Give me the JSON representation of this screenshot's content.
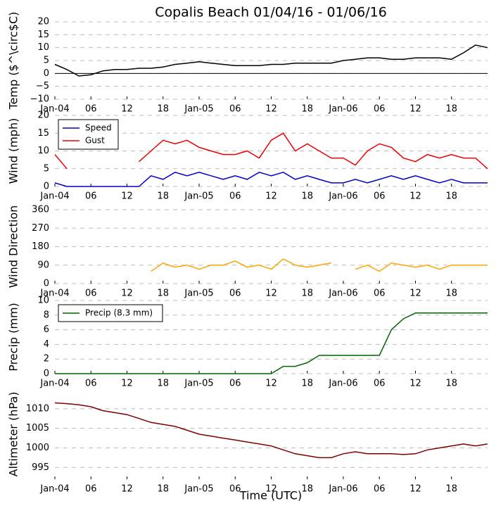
{
  "chart_data": [
    {
      "type": "line",
      "title": "Copalis Beach 01/04/16 - 01/06/16",
      "ylabel": "Temp ($^\\circ$C)",
      "x": [
        0,
        2,
        4,
        6,
        8,
        10,
        12,
        14,
        16,
        18,
        20,
        22,
        24,
        26,
        28,
        30,
        32,
        34,
        36,
        38,
        40,
        42,
        44,
        46,
        48,
        50,
        52,
        54,
        56,
        58,
        60,
        62,
        64,
        66,
        68,
        70,
        72
      ],
      "series": [
        {
          "name": "Temp",
          "color": "#000000",
          "values": [
            3.5,
            1.5,
            -1,
            -0.5,
            1,
            1.5,
            1.5,
            2,
            2,
            2.5,
            3.5,
            4,
            4.5,
            4,
            3.5,
            3,
            3,
            3,
            3.5,
            3.5,
            4,
            4,
            4,
            4,
            5,
            5.5,
            6,
            6,
            5.5,
            5.5,
            6,
            6,
            6,
            5.5,
            8,
            11,
            10
          ]
        }
      ],
      "xlim": [
        0,
        72
      ],
      "xticks": [
        {
          "value": 0,
          "label": "Jan-04"
        },
        {
          "value": 6,
          "label": "06"
        },
        {
          "value": 12,
          "label": "12"
        },
        {
          "value": 18,
          "label": "18"
        },
        {
          "value": 24,
          "label": "Jan-05"
        },
        {
          "value": 30,
          "label": "06"
        },
        {
          "value": 36,
          "label": "12"
        },
        {
          "value": 42,
          "label": "18"
        },
        {
          "value": 48,
          "label": "Jan-06"
        },
        {
          "value": 54,
          "label": "06"
        },
        {
          "value": 60,
          "label": "12"
        },
        {
          "value": 66,
          "label": "18"
        }
      ],
      "ylim": [
        -10,
        20
      ],
      "yticks": [
        {
          "value": -10,
          "label": "−10"
        },
        {
          "value": -5,
          "label": "−5"
        },
        0,
        5,
        10,
        15,
        20
      ],
      "grid": true,
      "zero_line": true
    },
    {
      "type": "line",
      "ylabel": "Wind (mph)",
      "x": [
        0,
        2,
        4,
        6,
        8,
        10,
        12,
        14,
        16,
        18,
        20,
        22,
        24,
        26,
        28,
        30,
        32,
        34,
        36,
        38,
        40,
        42,
        44,
        46,
        48,
        50,
        52,
        54,
        56,
        58,
        60,
        62,
        64,
        66,
        68,
        70,
        72
      ],
      "series": [
        {
          "name": "Speed",
          "color": "#0000cc",
          "values": [
            1,
            0,
            0,
            0,
            0,
            0,
            0,
            0,
            3,
            2,
            4,
            3,
            4,
            3,
            2,
            3,
            2,
            4,
            3,
            4,
            2,
            3,
            2,
            1,
            1,
            2,
            1,
            2,
            3,
            2,
            3,
            2,
            1,
            2,
            1,
            1,
            1
          ]
        },
        {
          "name": "Gust",
          "color": "#ee0000",
          "values": [
            9,
            5,
            null,
            null,
            null,
            null,
            null,
            7,
            10,
            13,
            12,
            13,
            11,
            10,
            9,
            9,
            10,
            8,
            13,
            15,
            10,
            12,
            10,
            8,
            8,
            6,
            10,
            12,
            11,
            8,
            7,
            9,
            8,
            9,
            8,
            8,
            5
          ]
        }
      ],
      "xlim": [
        0,
        72
      ],
      "xticks": [
        {
          "value": 0,
          "label": "Jan-04"
        },
        {
          "value": 6,
          "label": "06"
        },
        {
          "value": 12,
          "label": "12"
        },
        {
          "value": 18,
          "label": "18"
        },
        {
          "value": 24,
          "label": "Jan-05"
        },
        {
          "value": 30,
          "label": "06"
        },
        {
          "value": 36,
          "label": "12"
        },
        {
          "value": 42,
          "label": "18"
        },
        {
          "value": 48,
          "label": "Jan-06"
        },
        {
          "value": 54,
          "label": "06"
        },
        {
          "value": 60,
          "label": "12"
        },
        {
          "value": 66,
          "label": "18"
        }
      ],
      "ylim": [
        0,
        20
      ],
      "yticks": [
        0,
        5,
        10,
        15,
        20
      ],
      "grid": true,
      "legend": "upper left"
    },
    {
      "type": "line",
      "ylabel": "Wind Direction",
      "x": [
        0,
        2,
        4,
        6,
        8,
        10,
        12,
        14,
        16,
        18,
        20,
        22,
        24,
        26,
        28,
        30,
        32,
        34,
        36,
        38,
        40,
        42,
        44,
        46,
        48,
        50,
        52,
        54,
        56,
        58,
        60,
        62,
        64,
        66,
        68,
        70,
        72
      ],
      "series": [
        {
          "name": "Direction",
          "color": "#ffa500",
          "values": [
            null,
            null,
            null,
            null,
            null,
            null,
            null,
            null,
            60,
            100,
            80,
            90,
            70,
            90,
            90,
            110,
            80,
            90,
            70,
            120,
            90,
            80,
            90,
            100,
            null,
            70,
            90,
            60,
            100,
            90,
            80,
            90,
            70,
            90,
            90,
            90,
            90
          ]
        }
      ],
      "xlim": [
        0,
        72
      ],
      "xticks": [
        {
          "value": 0,
          "label": "Jan-04"
        },
        {
          "value": 6,
          "label": "06"
        },
        {
          "value": 12,
          "label": "12"
        },
        {
          "value": 18,
          "label": "18"
        },
        {
          "value": 24,
          "label": "Jan-05"
        },
        {
          "value": 30,
          "label": "06"
        },
        {
          "value": 36,
          "label": "12"
        },
        {
          "value": 42,
          "label": "18"
        },
        {
          "value": 48,
          "label": "Jan-06"
        },
        {
          "value": 54,
          "label": "06"
        },
        {
          "value": 60,
          "label": "12"
        },
        {
          "value": 66,
          "label": "18"
        }
      ],
      "ylim": [
        0,
        360
      ],
      "yticks": [
        0,
        90,
        180,
        270,
        360
      ],
      "grid": true
    },
    {
      "type": "line",
      "ylabel": "Precip (mm)",
      "x": [
        0,
        2,
        4,
        6,
        8,
        10,
        12,
        14,
        16,
        18,
        20,
        22,
        24,
        26,
        28,
        30,
        32,
        34,
        36,
        38,
        40,
        42,
        44,
        46,
        48,
        50,
        52,
        54,
        56,
        58,
        60,
        62,
        64,
        66,
        68,
        70,
        72
      ],
      "series": [
        {
          "name": "Precip (8.3 mm)",
          "color": "#006400",
          "values": [
            0,
            0,
            0,
            0,
            0,
            0,
            0,
            0,
            0,
            0,
            0,
            0,
            0,
            0,
            0,
            0,
            0,
            0,
            0,
            1,
            1,
            1.5,
            2.5,
            2.5,
            2.5,
            2.5,
            2.5,
            2.5,
            6,
            7.5,
            8.3,
            8.3,
            8.3,
            8.3,
            8.3,
            8.3,
            8.3
          ]
        }
      ],
      "xlim": [
        0,
        72
      ],
      "xticks": [
        {
          "value": 0,
          "label": "Jan-04"
        },
        {
          "value": 6,
          "label": "06"
        },
        {
          "value": 12,
          "label": "12"
        },
        {
          "value": 18,
          "label": "18"
        },
        {
          "value": 24,
          "label": "Jan-05"
        },
        {
          "value": 30,
          "label": "06"
        },
        {
          "value": 36,
          "label": "12"
        },
        {
          "value": 42,
          "label": "18"
        },
        {
          "value": 48,
          "label": "Jan-06"
        },
        {
          "value": 54,
          "label": "06"
        },
        {
          "value": 60,
          "label": "12"
        },
        {
          "value": 66,
          "label": "18"
        }
      ],
      "ylim": [
        0,
        10
      ],
      "yticks": [
        0,
        2,
        4,
        6,
        8,
        10
      ],
      "grid": true,
      "legend": "upper left"
    },
    {
      "type": "line",
      "ylabel": "Altimeter (hPa)",
      "xlabel": "Time (UTC)",
      "x": [
        0,
        2,
        4,
        6,
        8,
        10,
        12,
        14,
        16,
        18,
        20,
        22,
        24,
        26,
        28,
        30,
        32,
        34,
        36,
        38,
        40,
        42,
        44,
        46,
        48,
        50,
        52,
        54,
        56,
        58,
        60,
        62,
        64,
        66,
        68,
        70,
        72
      ],
      "series": [
        {
          "name": "Altimeter",
          "color": "#800000",
          "values": [
            1011.5,
            1011.3,
            1011,
            1010.5,
            1009.5,
            1009,
            1008.5,
            1007.5,
            1006.5,
            1006,
            1005.5,
            1004.5,
            1003.5,
            1003,
            1002.5,
            1002,
            1001.5,
            1001,
            1000.5,
            999.5,
            998.5,
            998,
            997.5,
            997.5,
            998.5,
            999,
            998.5,
            998.5,
            998.5,
            998.3,
            998.5,
            999.5,
            1000,
            1000.5,
            1001,
            1000.5,
            1001
          ]
        }
      ],
      "xlim": [
        0,
        72
      ],
      "xticks": [
        {
          "value": 0,
          "label": "Jan-04"
        },
        {
          "value": 6,
          "label": "06"
        },
        {
          "value": 12,
          "label": "12"
        },
        {
          "value": 18,
          "label": "18"
        },
        {
          "value": 24,
          "label": "Jan-05"
        },
        {
          "value": 30,
          "label": "06"
        },
        {
          "value": 36,
          "label": "12"
        },
        {
          "value": 42,
          "label": "18"
        },
        {
          "value": 48,
          "label": "Jan-06"
        },
        {
          "value": 54,
          "label": "06"
        },
        {
          "value": 60,
          "label": "12"
        },
        {
          "value": 66,
          "label": "18"
        }
      ],
      "ylim": [
        992,
        1015
      ],
      "yticks": [
        995,
        1000,
        1005,
        1010
      ],
      "grid": true
    }
  ]
}
